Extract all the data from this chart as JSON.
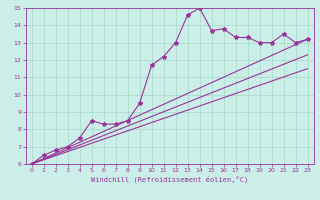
{
  "background_color": "#cceee8",
  "grid_color": "#aaddcc",
  "line_color": "#993399",
  "marker": "*",
  "xlabel": "Windchill (Refroidissement éolien,°C)",
  "xlim": [
    -0.5,
    23.5
  ],
  "ylim": [
    6,
    15
  ],
  "yticks": [
    6,
    7,
    8,
    9,
    10,
    11,
    12,
    13,
    14,
    15
  ],
  "xticks": [
    0,
    1,
    2,
    3,
    4,
    5,
    6,
    7,
    8,
    9,
    10,
    11,
    12,
    13,
    14,
    15,
    16,
    17,
    18,
    19,
    20,
    21,
    22,
    23
  ],
  "main_x": [
    0,
    1,
    2,
    3,
    4,
    5,
    6,
    7,
    8,
    9,
    10,
    11,
    12,
    13,
    14,
    15,
    16,
    17,
    18,
    19,
    20,
    21,
    22,
    23
  ],
  "main_y": [
    6.0,
    6.5,
    6.8,
    7.0,
    7.5,
    8.5,
    8.3,
    8.3,
    8.5,
    9.5,
    11.7,
    12.2,
    13.0,
    14.6,
    15.0,
    13.7,
    13.8,
    13.3,
    13.3,
    13.0,
    13.0,
    13.5,
    13.0,
    13.2
  ],
  "line1_x": [
    0,
    23
  ],
  "line1_y": [
    6.0,
    13.2
  ],
  "line2_x": [
    0,
    23
  ],
  "line2_y": [
    6.0,
    12.3
  ],
  "line3_x": [
    0,
    23
  ],
  "line3_y": [
    6.0,
    11.5
  ],
  "figwidth": 3.2,
  "figheight": 2.0,
  "dpi": 100
}
